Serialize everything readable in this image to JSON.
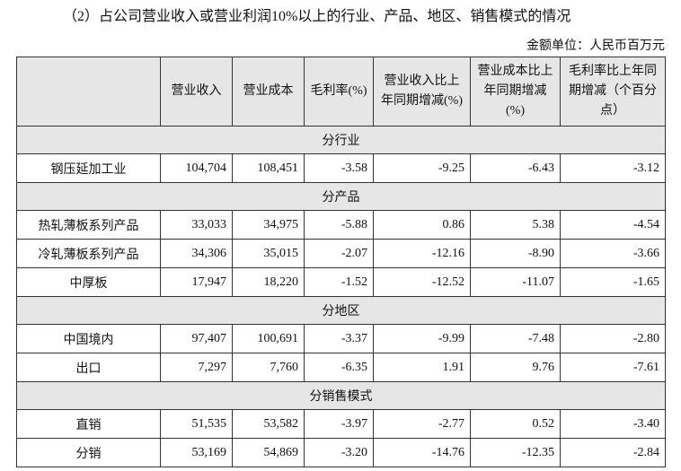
{
  "title": "（2）占公司营业收入或营业利润10%以上的行业、产品、地区、销售模式的情况",
  "unit": "金额单位：人民币百万元",
  "table": {
    "header": [
      "营业收入",
      "营业成本",
      "毛利率(%)",
      "营业收入比上年同期增减(%)",
      "营业成本比上年同期增减(%)",
      "毛利率比上年同期增减（个百分点）"
    ],
    "sections": [
      {
        "label": "分行业",
        "rows": [
          [
            "钢压延加工业",
            "104,704",
            "108,451",
            "-3.58",
            "-9.25",
            "-6.43",
            "-3.12"
          ]
        ]
      },
      {
        "label": "分产品",
        "rows": [
          [
            "热轧薄板系列产品",
            "33,033",
            "34,975",
            "-5.88",
            "0.86",
            "5.38",
            "-4.54"
          ],
          [
            "冷轧薄板系列产品",
            "34,306",
            "35,015",
            "-2.07",
            "-12.16",
            "-8.90",
            "-3.66"
          ],
          [
            "中厚板",
            "17,947",
            "18,220",
            "-1.52",
            "-12.52",
            "-11.07",
            "-1.65"
          ]
        ]
      },
      {
        "label": "分地区",
        "rows": [
          [
            "中国境内",
            "97,407",
            "100,691",
            "-3.37",
            "-9.99",
            "-7.48",
            "-2.80"
          ],
          [
            "出口",
            "7,297",
            "7,760",
            "-6.35",
            "1.91",
            "9.76",
            "-7.61"
          ]
        ]
      },
      {
        "label": "分销售模式",
        "rows": [
          [
            "直销",
            "51,535",
            "53,582",
            "-3.97",
            "-2.77",
            "0.52",
            "-3.40"
          ],
          [
            "分销",
            "53,169",
            "54,869",
            "-3.20",
            "-14.76",
            "-12.35",
            "-2.84"
          ]
        ]
      }
    ]
  }
}
